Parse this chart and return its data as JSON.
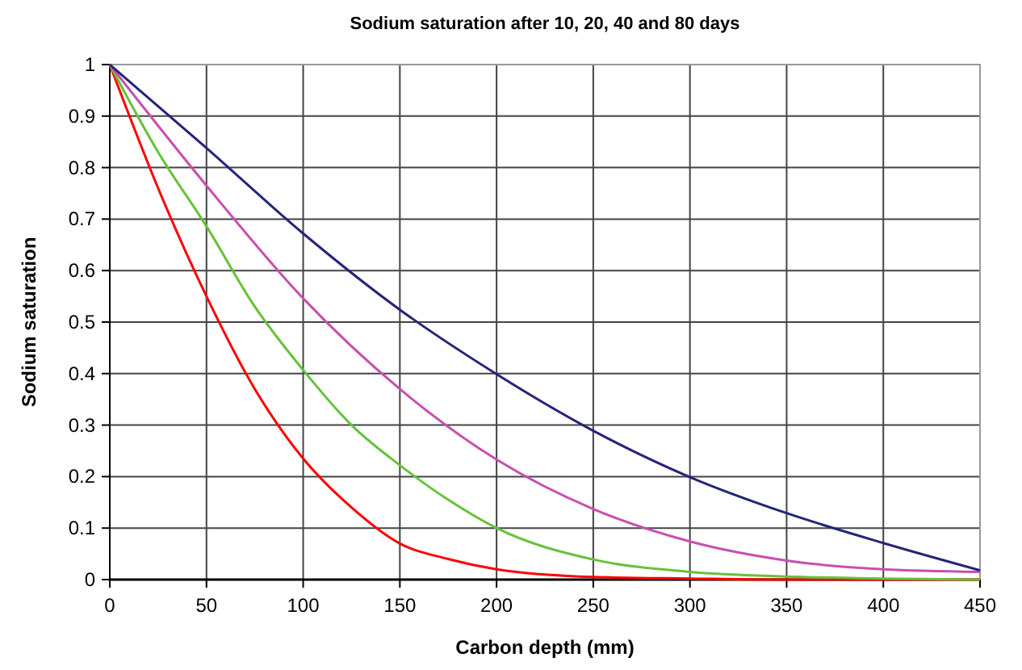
{
  "chart_data": {
    "type": "line",
    "title": "Sodium saturation after 10, 20, 40 and 80 days",
    "xlabel": "Carbon depth (mm)",
    "ylabel": "Sodium saturation",
    "xlim": [
      0,
      450
    ],
    "xticks": [
      0,
      50,
      100,
      150,
      200,
      250,
      300,
      350,
      400,
      450
    ],
    "ylim": [
      0,
      1
    ],
    "yticks": [
      0,
      0.1,
      0.2,
      0.3,
      0.4,
      0.5,
      0.6,
      0.7,
      0.8,
      0.9,
      1
    ],
    "grid": true,
    "marker": "none",
    "line_style": "solid",
    "series": [
      {
        "color": "#ff0000",
        "x": [
          0,
          25,
          50,
          75,
          100,
          125,
          150,
          175,
          200,
          250,
          300,
          350,
          400,
          450
        ],
        "values": [
          1,
          0.76,
          0.55,
          0.37,
          0.235,
          0.14,
          0.07,
          0.04,
          0.02,
          0.005,
          0.002,
          0,
          0,
          0
        ]
      },
      {
        "color": "#66c23a",
        "x": [
          0,
          25,
          50,
          75,
          100,
          125,
          150,
          175,
          200,
          250,
          300,
          350,
          400,
          450
        ],
        "values": [
          1,
          0.83,
          0.686,
          0.53,
          0.407,
          0.3,
          0.222,
          0.155,
          0.1,
          0.039,
          0.015,
          0.006,
          0.002,
          0
        ]
      },
      {
        "color": "#c94fb0",
        "x": [
          0,
          50,
          100,
          150,
          200,
          250,
          300,
          350,
          400,
          450
        ],
        "values": [
          1,
          0.765,
          0.546,
          0.37,
          0.233,
          0.137,
          0.074,
          0.037,
          0.02,
          0.015
        ]
      },
      {
        "color": "#24247a",
        "x": [
          0,
          50,
          100,
          150,
          200,
          250,
          300,
          350,
          400,
          450
        ],
        "values": [
          1,
          0.838,
          0.672,
          0.524,
          0.399,
          0.289,
          0.199,
          0.129,
          0.071,
          0.018
        ]
      }
    ]
  }
}
